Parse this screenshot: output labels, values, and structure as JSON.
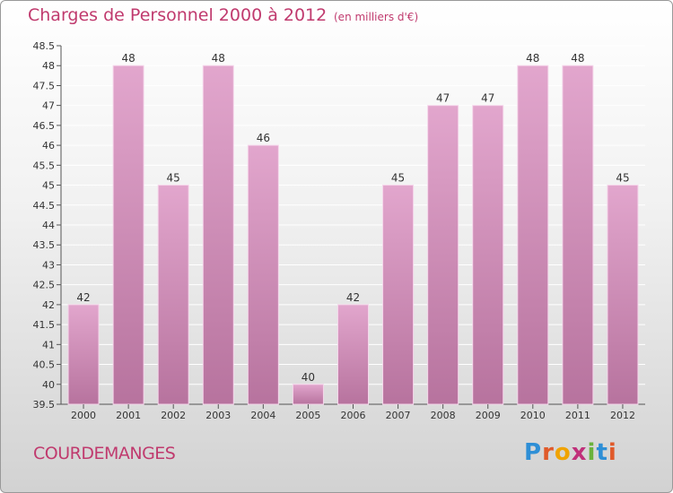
{
  "header": {
    "title": "Charges de Personnel 2000 à 2012",
    "unit": "(en milliers d'€)"
  },
  "footer": {
    "town": "COURDEMANGES",
    "logo_letters": [
      "P",
      "r",
      "o",
      "x",
      "i",
      "t",
      "i"
    ],
    "logo_colors": [
      "#2e8fd6",
      "#e05a2a",
      "#f0a300",
      "#c0307a",
      "#6ab23c",
      "#2e8fd6",
      "#e05a2a"
    ]
  },
  "colors": {
    "bar_top": "#e2a6cd",
    "bar_bottom": "#b7739e",
    "bar_edge": "#f5d5ea",
    "text": "#c03a6e",
    "axis_text": "#333333",
    "grid": "#ffffff"
  },
  "chart_data": {
    "type": "bar",
    "categories": [
      "2000",
      "2001",
      "2002",
      "2003",
      "2004",
      "2005",
      "2006",
      "2007",
      "2008",
      "2009",
      "2010",
      "2011",
      "2012"
    ],
    "values": [
      42,
      48,
      45,
      48,
      46,
      40,
      42,
      45,
      47,
      47,
      48,
      48,
      45
    ],
    "data_labels": [
      "42",
      "48",
      "45",
      "48",
      "46",
      "40",
      "42",
      "45",
      "47",
      "47",
      "48",
      "48",
      "45"
    ],
    "yticks": [
      "39.5",
      "40",
      "40.5",
      "41",
      "41.5",
      "42",
      "42.5",
      "43",
      "43.5",
      "44",
      "44.5",
      "45",
      "45.5",
      "46",
      "46.5",
      "47",
      "47.5",
      "48",
      "48.5"
    ],
    "ylim": [
      39.5,
      48.5
    ],
    "grid": true,
    "legend": "none"
  }
}
